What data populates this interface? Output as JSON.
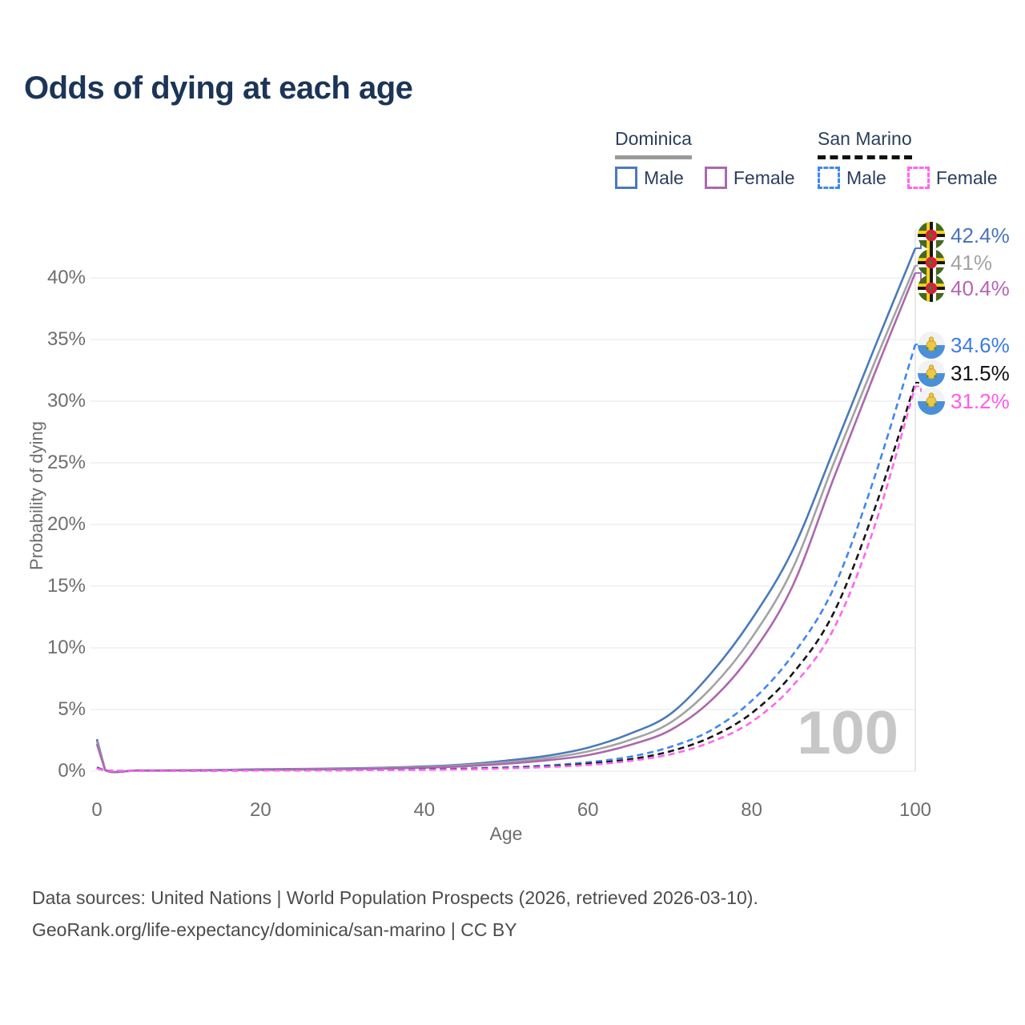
{
  "title": "Odds of dying at each age",
  "legend": {
    "groups": [
      {
        "name": "Dominica",
        "line_style": "solid",
        "underline_color": "#9a9a9a",
        "items": [
          {
            "label": "Male",
            "color": "#4a7abc"
          },
          {
            "label": "Female",
            "color": "#ac68ae"
          }
        ]
      },
      {
        "name": "San Marino",
        "line_style": "dashed",
        "underline_color": "#111111",
        "items": [
          {
            "label": "Male",
            "color": "#3f87f0"
          },
          {
            "label": "Female",
            "color": "#ff66ee"
          }
        ]
      }
    ]
  },
  "chart_data": {
    "type": "line",
    "title": "Odds of dying at each age",
    "xlabel": "Age",
    "ylabel": "Probability of dying",
    "xlim": [
      0,
      100
    ],
    "ylim_pct": [
      0,
      44
    ],
    "grid": "horizontal",
    "x_ticks": [
      0,
      20,
      40,
      60,
      80,
      100
    ],
    "y_ticks": [
      "0%",
      "5%",
      "10%",
      "15%",
      "20%",
      "25%",
      "30%",
      "35%",
      "40%"
    ],
    "hover_age": "100",
    "x": [
      0,
      1,
      5,
      10,
      15,
      20,
      25,
      30,
      35,
      40,
      45,
      50,
      55,
      60,
      65,
      70,
      75,
      80,
      85,
      90,
      95,
      100
    ],
    "series": [
      {
        "name": "Dominica Male",
        "country": "Dominica",
        "sex": "Male",
        "color": "#4a7abc",
        "label_color": "#4a74bc",
        "dash": false,
        "flag": "dominica",
        "end_label": "42.4%",
        "values": [
          2.6,
          0.12,
          0.06,
          0.07,
          0.1,
          0.15,
          0.18,
          0.22,
          0.28,
          0.38,
          0.55,
          0.85,
          1.25,
          1.9,
          3.0,
          4.6,
          7.9,
          12.3,
          17.9,
          26.0,
          34.3,
          42.4
        ]
      },
      {
        "name": "Dominica Both sexes",
        "country": "Dominica",
        "sex": "Both",
        "color": "#a3a3a3",
        "label_color": "#a3a3a3",
        "dash": false,
        "flag": "dominica",
        "end_label": "41%",
        "values": [
          2.4,
          0.11,
          0.05,
          0.06,
          0.09,
          0.13,
          0.16,
          0.19,
          0.25,
          0.33,
          0.48,
          0.72,
          1.05,
          1.6,
          2.5,
          3.9,
          6.7,
          10.8,
          16.4,
          24.9,
          33.1,
          41.0
        ]
      },
      {
        "name": "Dominica Female",
        "country": "Dominica",
        "sex": "Female",
        "color": "#ac68ae",
        "label_color": "#b565b5",
        "dash": false,
        "flag": "dominica",
        "end_label": "40.4%",
        "values": [
          2.2,
          0.1,
          0.05,
          0.05,
          0.08,
          0.11,
          0.13,
          0.16,
          0.21,
          0.28,
          0.4,
          0.6,
          0.88,
          1.3,
          2.1,
          3.3,
          5.7,
          9.5,
          15.0,
          23.7,
          32.2,
          40.4
        ]
      },
      {
        "name": "San Marino Male",
        "country": "San Marino",
        "sex": "Male",
        "color": "#3f87f0",
        "label_color": "#3b7ce6",
        "dash": true,
        "flag": "san-marino",
        "end_label": "34.6%",
        "values": [
          0.3,
          0.05,
          0.03,
          0.03,
          0.05,
          0.07,
          0.08,
          0.1,
          0.12,
          0.15,
          0.21,
          0.31,
          0.46,
          0.72,
          1.15,
          1.95,
          3.3,
          5.7,
          9.4,
          14.8,
          23.8,
          34.6
        ]
      },
      {
        "name": "San Marino Both sexes",
        "country": "San Marino",
        "sex": "Both",
        "color": "#161616",
        "label_color": "#111111",
        "dash": true,
        "flag": "san-marino",
        "end_label": "31.5%",
        "values": [
          0.26,
          0.04,
          0.02,
          0.03,
          0.04,
          0.06,
          0.07,
          0.08,
          0.1,
          0.13,
          0.18,
          0.26,
          0.38,
          0.6,
          0.95,
          1.6,
          2.75,
          4.7,
          7.9,
          12.8,
          21.2,
          31.5
        ]
      },
      {
        "name": "San Marino Female",
        "country": "San Marino",
        "sex": "Female",
        "color": "#ff66ee",
        "label_color": "#ff5bef",
        "dash": true,
        "flag": "san-marino",
        "end_label": "31.2%",
        "values": [
          0.22,
          0.04,
          0.02,
          0.02,
          0.04,
          0.05,
          0.06,
          0.07,
          0.09,
          0.11,
          0.15,
          0.22,
          0.33,
          0.5,
          0.82,
          1.35,
          2.35,
          4.0,
          6.9,
          11.5,
          19.8,
          31.2
        ]
      }
    ]
  },
  "annotations": {
    "watermark": "100"
  },
  "footer": {
    "line1": "Data sources: United Nations | World Population Prospects (2026, retrieved 2026-03-10).",
    "line2": "GeoRank.org/life-expectancy/dominica/san-marino | CC BY"
  }
}
